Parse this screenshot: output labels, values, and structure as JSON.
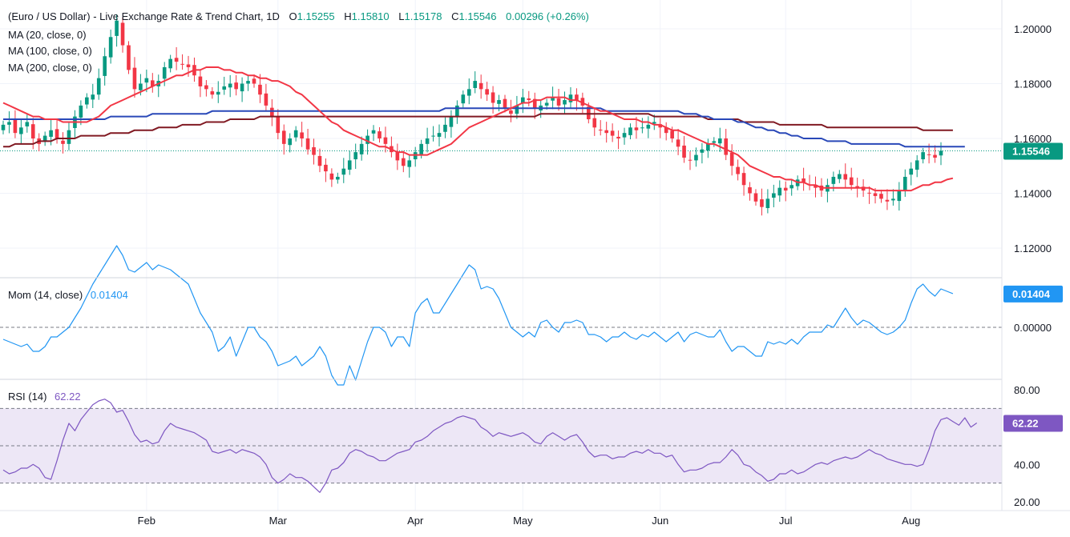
{
  "header": {
    "title": "(Euro / US Dollar) - Live Exchange Rate & Trend Chart, 1D",
    "o_label": "O",
    "o_value": "1.15255",
    "h_label": "H",
    "h_value": "1.15810",
    "l_label": "L",
    "l_value": "1.15178",
    "c_label": "C",
    "c_value": "1.15546",
    "change": "0.00296 (+0.26%)"
  },
  "legend": {
    "ma20": "MA (20, close, 0)",
    "ma100": "MA (100, close, 0)",
    "ma200": "MA (200, close, 0)",
    "mom": "Mom (14, close)",
    "mom_value": "0.01404",
    "rsi": "RSI (14)",
    "rsi_value": "62.22"
  },
  "colors": {
    "up": "#089981",
    "down": "#f23645",
    "ma20": "#f23645",
    "ma100": "#2948b8",
    "ma200": "#801922",
    "mom": "#2196f3",
    "rsi": "#7e57c2",
    "rsi_band": "#ede7f6"
  },
  "chart_data": [
    {
      "type": "candlestick",
      "y_ticks": [
        "1.20000",
        "1.18000",
        "1.16000",
        "1.14000",
        "1.12000"
      ],
      "ylim": [
        1.11,
        1.205
      ],
      "last_price": 1.15546,
      "last_price_label": "1.15546",
      "x_tick_labels": [
        "Feb",
        "Mar",
        "Apr",
        "May",
        "Jun",
        "Jul",
        "Aug"
      ],
      "close": [
        1.165,
        1.166,
        1.162,
        1.164,
        1.166,
        1.16,
        1.158,
        1.161,
        1.163,
        1.16,
        1.158,
        1.163,
        1.168,
        1.172,
        1.175,
        1.176,
        1.182,
        1.19,
        1.197,
        1.203,
        1.194,
        1.185,
        1.178,
        1.18,
        1.182,
        1.179,
        1.181,
        1.186,
        1.189,
        1.188,
        1.187,
        1.186,
        1.183,
        1.179,
        1.178,
        1.176,
        1.177,
        1.179,
        1.18,
        1.178,
        1.18,
        1.181,
        1.18,
        1.176,
        1.172,
        1.168,
        1.162,
        1.158,
        1.16,
        1.163,
        1.16,
        1.156,
        1.154,
        1.15,
        1.148,
        1.145,
        1.146,
        1.149,
        1.152,
        1.155,
        1.158,
        1.161,
        1.163,
        1.16,
        1.158,
        1.155,
        1.152,
        1.15,
        1.152,
        1.155,
        1.158,
        1.16,
        1.161,
        1.162,
        1.165,
        1.168,
        1.172,
        1.176,
        1.178,
        1.181,
        1.178,
        1.176,
        1.173,
        1.174,
        1.171,
        1.169,
        1.172,
        1.175,
        1.174,
        1.171,
        1.172,
        1.173,
        1.175,
        1.172,
        1.174,
        1.176,
        1.174,
        1.172,
        1.167,
        1.164,
        1.163,
        1.162,
        1.161,
        1.16,
        1.162,
        1.164,
        1.163,
        1.164,
        1.165,
        1.166,
        1.164,
        1.162,
        1.16,
        1.157,
        1.153,
        1.152,
        1.154,
        1.156,
        1.158,
        1.159,
        1.16,
        1.154,
        1.15,
        1.147,
        1.143,
        1.14,
        1.137,
        1.135,
        1.138,
        1.14,
        1.142,
        1.141,
        1.143,
        1.145,
        1.144,
        1.143,
        1.142,
        1.141,
        1.143,
        1.146,
        1.147,
        1.145,
        1.143,
        1.142,
        1.141,
        1.14,
        1.139,
        1.138,
        1.137,
        1.138,
        1.141,
        1.146,
        1.149,
        1.152,
        1.155,
        1.154,
        1.153,
        1.1555
      ],
      "ma20": [
        1.173,
        1.172,
        1.171,
        1.17,
        1.169,
        1.168,
        1.168,
        1.167,
        1.167,
        1.167,
        1.166,
        1.166,
        1.166,
        1.166,
        1.166,
        1.167,
        1.168,
        1.17,
        1.172,
        1.173,
        1.174,
        1.175,
        1.176,
        1.177,
        1.178,
        1.179,
        1.18,
        1.181,
        1.182,
        1.183,
        1.183,
        1.184,
        1.185,
        1.185,
        1.186,
        1.186,
        1.186,
        1.185,
        1.185,
        1.184,
        1.184,
        1.183,
        1.183,
        1.182,
        1.182,
        1.181,
        1.181,
        1.18,
        1.179,
        1.177,
        1.176,
        1.174,
        1.172,
        1.17,
        1.168,
        1.166,
        1.165,
        1.163,
        1.162,
        1.161,
        1.16,
        1.159,
        1.158,
        1.157,
        1.157,
        1.156,
        1.155,
        1.155,
        1.154,
        1.154,
        1.154,
        1.154,
        1.155,
        1.156,
        1.157,
        1.158,
        1.16,
        1.162,
        1.164,
        1.165,
        1.166,
        1.167,
        1.168,
        1.169,
        1.17,
        1.171,
        1.172,
        1.173,
        1.173,
        1.174,
        1.174,
        1.175,
        1.175,
        1.175,
        1.175,
        1.174,
        1.174,
        1.173,
        1.172,
        1.171,
        1.17,
        1.17,
        1.169,
        1.168,
        1.167,
        1.167,
        1.167,
        1.166,
        1.166,
        1.165,
        1.165,
        1.164,
        1.163,
        1.163,
        1.162,
        1.161,
        1.16,
        1.159,
        1.158,
        1.158,
        1.157,
        1.156,
        1.155,
        1.154,
        1.152,
        1.15,
        1.149,
        1.148,
        1.147,
        1.146,
        1.146,
        1.145,
        1.145,
        1.144,
        1.144,
        1.143,
        1.143,
        1.142,
        1.142,
        1.142,
        1.142,
        1.142,
        1.142,
        1.142,
        1.142,
        1.142,
        1.141,
        1.141,
        1.141,
        1.141,
        1.141,
        1.141,
        1.141,
        1.142,
        1.143,
        1.143,
        1.144,
        1.144,
        1.145,
        1.1455
      ],
      "ma100": [
        1.167,
        1.167,
        1.167,
        1.167,
        1.167,
        1.167,
        1.167,
        1.167,
        1.167,
        1.167,
        1.167,
        1.167,
        1.167,
        1.167,
        1.167,
        1.167,
        1.167,
        1.167,
        1.168,
        1.168,
        1.168,
        1.168,
        1.168,
        1.168,
        1.168,
        1.169,
        1.169,
        1.169,
        1.169,
        1.169,
        1.169,
        1.169,
        1.169,
        1.169,
        1.169,
        1.17,
        1.17,
        1.17,
        1.17,
        1.17,
        1.17,
        1.17,
        1.17,
        1.17,
        1.17,
        1.17,
        1.17,
        1.17,
        1.17,
        1.17,
        1.17,
        1.17,
        1.17,
        1.17,
        1.17,
        1.17,
        1.17,
        1.17,
        1.17,
        1.17,
        1.17,
        1.17,
        1.17,
        1.17,
        1.17,
        1.17,
        1.17,
        1.17,
        1.17,
        1.17,
        1.17,
        1.17,
        1.17,
        1.17,
        1.171,
        1.171,
        1.171,
        1.171,
        1.171,
        1.171,
        1.171,
        1.171,
        1.171,
        1.171,
        1.171,
        1.171,
        1.171,
        1.171,
        1.171,
        1.171,
        1.171,
        1.171,
        1.171,
        1.171,
        1.171,
        1.171,
        1.171,
        1.171,
        1.171,
        1.171,
        1.171,
        1.17,
        1.17,
        1.17,
        1.17,
        1.17,
        1.17,
        1.17,
        1.17,
        1.17,
        1.17,
        1.17,
        1.17,
        1.17,
        1.169,
        1.169,
        1.169,
        1.168,
        1.168,
        1.167,
        1.167,
        1.167,
        1.167,
        1.166,
        1.166,
        1.165,
        1.164,
        1.164,
        1.163,
        1.163,
        1.162,
        1.162,
        1.161,
        1.161,
        1.16,
        1.16,
        1.16,
        1.16,
        1.159,
        1.159,
        1.159,
        1.159,
        1.158,
        1.158,
        1.158,
        1.158,
        1.158,
        1.158,
        1.158,
        1.158,
        1.158,
        1.157,
        1.157,
        1.157,
        1.157,
        1.157,
        1.157,
        1.157,
        1.157,
        1.157,
        1.157,
        1.157
      ],
      "ma200": [
        1.157,
        1.157,
        1.158,
        1.158,
        1.158,
        1.158,
        1.159,
        1.159,
        1.159,
        1.16,
        1.16,
        1.16,
        1.16,
        1.161,
        1.161,
        1.161,
        1.161,
        1.161,
        1.162,
        1.162,
        1.162,
        1.162,
        1.163,
        1.163,
        1.163,
        1.163,
        1.164,
        1.164,
        1.164,
        1.164,
        1.165,
        1.165,
        1.165,
        1.165,
        1.166,
        1.166,
        1.166,
        1.166,
        1.167,
        1.167,
        1.167,
        1.167,
        1.167,
        1.168,
        1.168,
        1.168,
        1.168,
        1.168,
        1.168,
        1.168,
        1.168,
        1.168,
        1.168,
        1.168,
        1.168,
        1.168,
        1.168,
        1.168,
        1.168,
        1.168,
        1.168,
        1.168,
        1.168,
        1.168,
        1.168,
        1.168,
        1.168,
        1.168,
        1.168,
        1.168,
        1.168,
        1.168,
        1.168,
        1.168,
        1.168,
        1.168,
        1.168,
        1.168,
        1.168,
        1.168,
        1.168,
        1.168,
        1.168,
        1.168,
        1.168,
        1.168,
        1.168,
        1.168,
        1.168,
        1.168,
        1.169,
        1.169,
        1.169,
        1.169,
        1.169,
        1.169,
        1.169,
        1.169,
        1.169,
        1.169,
        1.169,
        1.169,
        1.169,
        1.169,
        1.169,
        1.169,
        1.169,
        1.169,
        1.169,
        1.168,
        1.168,
        1.168,
        1.168,
        1.168,
        1.168,
        1.168,
        1.168,
        1.168,
        1.167,
        1.167,
        1.167,
        1.167,
        1.167,
        1.167,
        1.166,
        1.166,
        1.166,
        1.166,
        1.166,
        1.166,
        1.165,
        1.165,
        1.165,
        1.165,
        1.165,
        1.165,
        1.165,
        1.165,
        1.164,
        1.164,
        1.164,
        1.164,
        1.164,
        1.164,
        1.164,
        1.164,
        1.164,
        1.164,
        1.164,
        1.164,
        1.164,
        1.164,
        1.164,
        1.164,
        1.163,
        1.163,
        1.163,
        1.163,
        1.163,
        1.163
      ]
    },
    {
      "type": "line",
      "name": "Mom (14, close)",
      "y_ticks": [
        "0.00000"
      ],
      "zero_line": 0,
      "last_label": "0.01404",
      "values": [
        -0.005,
        -0.006,
        -0.007,
        -0.008,
        -0.007,
        -0.01,
        -0.01,
        -0.008,
        -0.004,
        -0.004,
        -0.002,
        0.0,
        0.004,
        0.008,
        0.013,
        0.018,
        0.022,
        0.026,
        0.03,
        0.034,
        0.03,
        0.024,
        0.023,
        0.025,
        0.027,
        0.024,
        0.026,
        0.025,
        0.024,
        0.022,
        0.02,
        0.018,
        0.012,
        0.006,
        0.002,
        -0.002,
        -0.01,
        -0.008,
        -0.004,
        -0.012,
        -0.006,
        0.0,
        0.0,
        -0.004,
        -0.006,
        -0.01,
        -0.016,
        -0.015,
        -0.014,
        -0.012,
        -0.016,
        -0.014,
        -0.012,
        -0.008,
        -0.012,
        -0.02,
        -0.024,
        -0.024,
        -0.016,
        -0.022,
        -0.014,
        -0.006,
        0.0,
        0.0,
        -0.002,
        -0.008,
        -0.004,
        -0.004,
        -0.008,
        0.006,
        0.01,
        0.012,
        0.006,
        0.006,
        0.01,
        0.014,
        0.018,
        0.022,
        0.026,
        0.024,
        0.016,
        0.017,
        0.016,
        0.012,
        0.006,
        0.0,
        -0.002,
        -0.004,
        -0.002,
        -0.004,
        0.002,
        0.003,
        0.0,
        -0.002,
        0.002,
        0.002,
        0.003,
        0.002,
        -0.003,
        -0.003,
        -0.004,
        -0.006,
        -0.004,
        -0.004,
        -0.002,
        -0.004,
        -0.005,
        -0.003,
        -0.004,
        -0.002,
        -0.004,
        -0.006,
        -0.004,
        -0.002,
        -0.006,
        -0.003,
        -0.002,
        -0.003,
        -0.004,
        -0.004,
        -0.001,
        -0.006,
        -0.01,
        -0.008,
        -0.008,
        -0.01,
        -0.012,
        -0.012,
        -0.006,
        -0.007,
        -0.006,
        -0.007,
        -0.005,
        -0.007,
        -0.004,
        -0.002,
        -0.002,
        -0.002,
        0.001,
        0.0,
        0.004,
        0.008,
        0.004,
        0.001,
        0.003,
        0.002,
        0.0,
        -0.002,
        -0.003,
        -0.002,
        0.0,
        0.003,
        0.01,
        0.016,
        0.018,
        0.015,
        0.013,
        0.016,
        0.015,
        0.01404
      ]
    },
    {
      "type": "line",
      "name": "RSI (14)",
      "y_ticks": [
        "80.00",
        "40.00",
        "20.00"
      ],
      "ylim": [
        20,
        80
      ],
      "band": [
        30,
        70
      ],
      "midline": 50,
      "last_label": "62.22",
      "values": [
        37,
        35,
        36,
        38,
        38,
        40,
        38,
        33,
        32,
        42,
        53,
        62,
        58,
        64,
        68,
        72,
        74,
        75,
        73,
        68,
        69,
        63,
        56,
        52,
        53,
        51,
        52,
        58,
        62,
        60,
        59,
        58,
        57,
        55,
        53,
        47,
        46,
        47,
        48,
        46,
        48,
        47,
        46,
        44,
        40,
        33,
        30,
        32,
        35,
        33,
        33,
        31,
        28,
        25,
        30,
        37,
        38,
        41,
        46,
        48,
        47,
        45,
        44,
        42,
        42,
        44,
        46,
        47,
        48,
        52,
        53,
        55,
        58,
        60,
        62,
        63,
        65,
        66,
        65,
        64,
        60,
        58,
        55,
        57,
        56,
        55,
        56,
        57,
        55,
        52,
        51,
        55,
        57,
        55,
        53,
        55,
        56,
        52,
        47,
        44,
        45,
        45,
        43,
        44,
        44,
        46,
        47,
        46,
        48,
        46,
        46,
        44,
        45,
        40,
        36,
        37,
        37,
        38,
        40,
        41,
        41,
        44,
        48,
        45,
        40,
        39,
        36,
        34,
        31,
        32,
        35,
        35,
        37,
        35,
        36,
        38,
        40,
        41,
        40,
        42,
        43,
        44,
        43,
        44,
        46,
        48,
        46,
        45,
        43,
        42,
        41,
        40,
        40,
        39,
        40,
        48,
        58,
        64,
        65,
        63,
        61,
        65,
        60,
        62.22
      ]
    }
  ]
}
